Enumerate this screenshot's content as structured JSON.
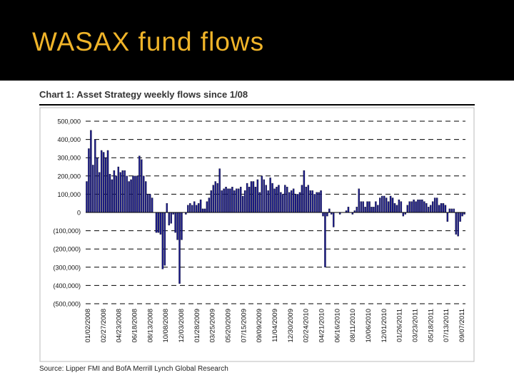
{
  "slide": {
    "title": "WASAX fund flows"
  },
  "chart_caption": "Chart 1: Asset Strategy weekly flows since 1/08",
  "source": "Source: Lipper FMI and BofA Merrill Lynch Global Research",
  "colors": {
    "title_bg": "#000000",
    "title_text": "#f0b429",
    "bar": "#1a1a8c",
    "axis": "#000000",
    "grid": "#000000"
  },
  "chart_data": {
    "type": "bar",
    "title": "Chart 1: Asset Strategy weekly flows since 1/08",
    "xlabel": "",
    "ylabel": "",
    "ylim": [
      -500000,
      500000
    ],
    "grid": true,
    "y_ticks": [
      500000,
      400000,
      300000,
      200000,
      100000,
      0,
      -100000,
      -200000,
      -300000,
      -400000,
      -500000
    ],
    "y_tick_labels": [
      "500,000",
      "400,000",
      "300,000",
      "200,000",
      "100,000",
      "0",
      "(100,000)",
      "(200,000)",
      "(300,000)",
      "(400,000)",
      "(500,000)"
    ],
    "x_tick_labels": [
      "01/02/2008",
      "02/27/2008",
      "04/23/2008",
      "06/18/2008",
      "08/13/2008",
      "10/08/2008",
      "12/03/2008",
      "01/28/2009",
      "03/25/2009",
      "05/20/2009",
      "07/15/2009",
      "09/09/2009",
      "11/04/2009",
      "12/30/2009",
      "02/24/2010",
      "04/21/2010",
      "06/16/2010",
      "08/11/2010",
      "10/06/2010",
      "12/01/2010",
      "01/26/2011",
      "03/23/2011",
      "05/18/2011",
      "07/13/2011",
      "09/07/2011"
    ],
    "series": [
      {
        "values": [
          170000,
          350000,
          450000,
          260000,
          400000,
          300000,
          220000,
          340000,
          330000,
          300000,
          340000,
          210000,
          180000,
          230000,
          200000,
          250000,
          220000,
          230000,
          230000,
          200000,
          170000,
          180000,
          200000,
          200000,
          200000,
          310000,
          290000,
          200000,
          170000,
          100000,
          100000,
          80000,
          0,
          -110000,
          -110000,
          -120000,
          -310000,
          -290000,
          50000,
          -70000,
          -60000,
          -10000,
          -110000,
          -150000,
          -390000,
          -150000,
          0,
          -10000,
          40000,
          50000,
          40000,
          60000,
          40000,
          50000,
          70000,
          20000,
          20000,
          60000,
          80000,
          120000,
          150000,
          170000,
          160000,
          240000,
          120000,
          130000,
          140000,
          130000,
          130000,
          140000,
          120000,
          130000,
          130000,
          140000,
          90000,
          120000,
          160000,
          140000,
          170000,
          170000,
          140000,
          180000,
          110000,
          200000,
          180000,
          150000,
          120000,
          190000,
          160000,
          130000,
          140000,
          150000,
          110000,
          100000,
          150000,
          140000,
          110000,
          120000,
          130000,
          100000,
          100000,
          110000,
          150000,
          230000,
          140000,
          150000,
          120000,
          120000,
          100000,
          110000,
          110000,
          120000,
          -20000,
          -300000,
          -20000,
          20000,
          -10000,
          -80000,
          0,
          0,
          -10000,
          0,
          0,
          10000,
          30000,
          0,
          -10000,
          10000,
          30000,
          130000,
          60000,
          60000,
          30000,
          60000,
          60000,
          30000,
          30000,
          60000,
          40000,
          80000,
          90000,
          90000,
          80000,
          60000,
          90000,
          80000,
          50000,
          40000,
          70000,
          60000,
          -20000,
          -10000,
          40000,
          60000,
          60000,
          70000,
          60000,
          70000,
          70000,
          70000,
          60000,
          50000,
          30000,
          40000,
          60000,
          80000,
          80000,
          40000,
          50000,
          50000,
          40000,
          -50000,
          20000,
          20000,
          20000,
          -120000,
          -130000,
          -50000,
          -20000,
          -10000
        ]
      }
    ]
  }
}
